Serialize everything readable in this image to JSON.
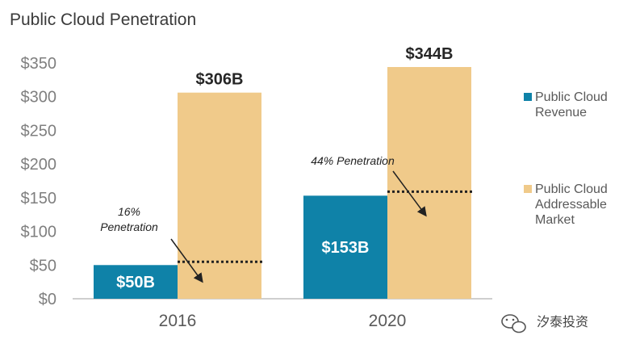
{
  "chart_data": {
    "type": "bar",
    "title": "Public Cloud Penetration",
    "categories": [
      "2016",
      "2020"
    ],
    "series": [
      {
        "name": "Public Cloud Revenue",
        "values": [
          50,
          153
        ],
        "labels": [
          "$50B",
          "$153B"
        ],
        "color": "#0f82a8",
        "label_color": "#ffffff"
      },
      {
        "name": "Public Cloud Addressable Market",
        "values": [
          306,
          344
        ],
        "labels": [
          "$306B",
          "$344B"
        ],
        "color": "#f0ca8a",
        "label_color": "#262626"
      }
    ],
    "legend_lines": [
      [
        "Public Cloud",
        "Revenue"
      ],
      [
        "Public Cloud",
        "Addressable",
        "Market"
      ]
    ],
    "y_ticks": [
      {
        "value": 0,
        "label": "$0"
      },
      {
        "value": 50,
        "label": "$50"
      },
      {
        "value": 100,
        "label": "$100"
      },
      {
        "value": 150,
        "label": "$150"
      },
      {
        "value": 200,
        "label": "$200"
      },
      {
        "value": 250,
        "label": "$250"
      },
      {
        "value": 300,
        "label": "$300"
      },
      {
        "value": 350,
        "label": "$350"
      }
    ],
    "ylim": [
      0,
      350
    ],
    "xlabel": "",
    "ylabel": "",
    "grid": false,
    "legend_position": "right",
    "annotations": [
      {
        "category_index": 0,
        "lines": [
          "16%",
          "Penetration"
        ],
        "penetration_value": 50
      },
      {
        "category_index": 1,
        "lines": [
          "44% Penetration"
        ],
        "penetration_value": 153
      }
    ]
  },
  "watermark": {
    "text": "汐泰投资",
    "icon": "wechat-logo-icon"
  }
}
